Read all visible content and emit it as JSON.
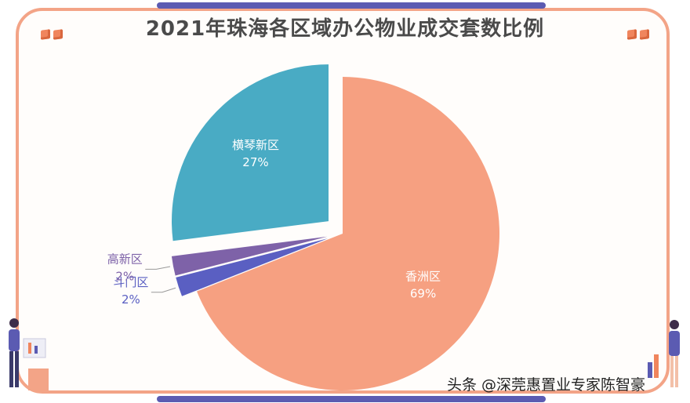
{
  "chart_data": {
    "type": "pie",
    "title": "2021年珠海各区域办公物业成交套数比例",
    "slices": [
      {
        "label": "香洲区",
        "value": 69,
        "value_label": "69%",
        "color": "#f6a081"
      },
      {
        "label": "斗门区",
        "value": 2,
        "value_label": "2%",
        "color": "#5a5fc2"
      },
      {
        "label": "高新区",
        "value": 2,
        "value_label": "2%",
        "color": "#7e62a8"
      },
      {
        "label": "横琴新区",
        "value": 27,
        "value_label": "27%",
        "color": "#49abc4"
      }
    ]
  },
  "watermark": "头条 @深莞惠置业专家陈智豪"
}
